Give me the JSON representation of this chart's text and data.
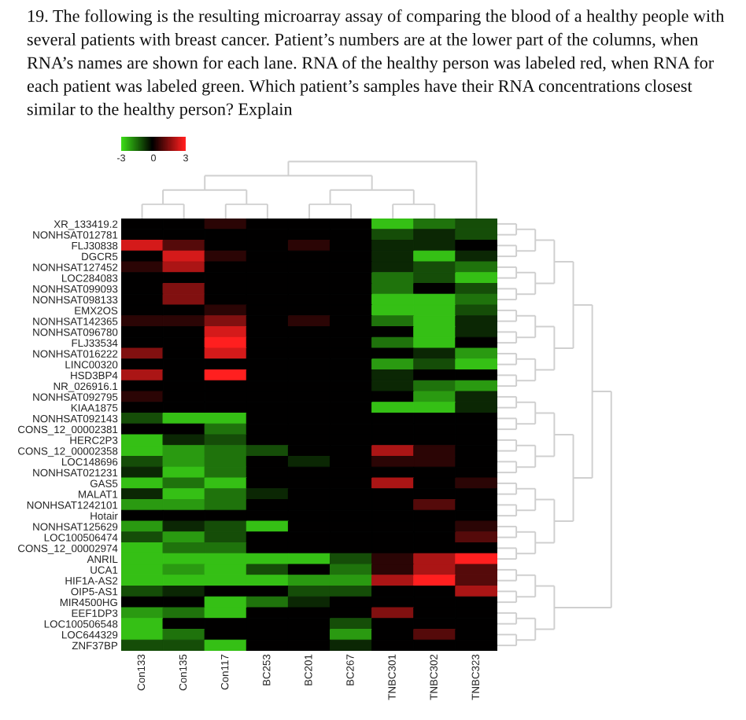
{
  "chart_data": {
    "type": "heatmap",
    "title": "19. The following is the resulting microarray assay of comparing the blood of a healthy people with\nseveral patients with breast cancer. Patient’s numbers are at the lower part of the columns, when\nRNA’s names are shown for each lane. RNA of the healthy person was labeled red, when RNA for\neach patient was labeled green. Which patient’s samples have their RNA concentrations closest\nsimilar to the healthy person? Explain",
    "categories": [
      "Con133",
      "Con135",
      "Con117",
      "BC253",
      "BC201",
      "BC267",
      "TNBC301",
      "TNBC302",
      "TNBC323"
    ],
    "y_categories": [
      "XR_133419.2",
      "NONHSAT012781",
      "FLJ30838",
      "DGCR5",
      "NONHSAT127452",
      "LOC284083",
      "NONHSAT099093",
      "NONHSAT098133",
      "EMX2OS",
      "NONHSAT142365",
      "NONHSAT096780",
      "FLJ33534",
      "NONHSAT016222",
      "LINC00320",
      "HSD3BP4",
      "NR_026916.1",
      "NONHSAT092795",
      "KIAA1875",
      "NONHSAT092143",
      "CONS_12_00002381",
      "HERC2P3",
      "CONS_12_00002358",
      "LOC148696",
      "NONHSAT021231",
      "GAS5",
      "MALAT1",
      "NONHSAT1242101",
      "Hotair",
      "NONHSAT125629",
      "LOC100506474",
      "CONS_12_00002974",
      "ANRIL",
      "UCA1",
      "HIF1A-AS2",
      "OIP5-AS1",
      "MIR4500HG",
      "EEF1DP3",
      "LOC100506548",
      "LOC644329",
      "ZNF37BP"
    ],
    "cells": [
      [
        0,
        0,
        0.5,
        0,
        0,
        0,
        -2.5,
        -1.5,
        -1
      ],
      [
        0,
        0,
        0,
        0,
        0,
        0,
        -1,
        -0.5,
        -1
      ],
      [
        2.5,
        1,
        0,
        0,
        0.5,
        0,
        -0.5,
        -0.5,
        0
      ],
      [
        0,
        2.5,
        0.5,
        0,
        0,
        0,
        -0.5,
        -2.5,
        -0.5
      ],
      [
        0.5,
        2,
        0,
        0,
        0,
        0,
        -0.5,
        -1,
        -1.5
      ],
      [
        0,
        0,
        0,
        0,
        0,
        0,
        -1.5,
        -1,
        -2.5
      ],
      [
        0,
        1.5,
        0,
        0,
        0,
        0,
        -1.5,
        0,
        -1
      ],
      [
        0,
        1.5,
        0,
        0,
        0,
        0,
        -2.5,
        -2.5,
        -1.5
      ],
      [
        0,
        0,
        0.5,
        0,
        0,
        0,
        -2.5,
        -2.5,
        -1
      ],
      [
        0.5,
        0.5,
        1.5,
        0,
        0.5,
        0,
        -1.5,
        -2.5,
        -0.5
      ],
      [
        0,
        0,
        2.5,
        0,
        0,
        0,
        0,
        -2.5,
        -0.5
      ],
      [
        0,
        0,
        3,
        0,
        0,
        0,
        -1.5,
        -2.5,
        0
      ],
      [
        1.5,
        0,
        2.5,
        0,
        0,
        0,
        0,
        -0.5,
        -2
      ],
      [
        0,
        0,
        0,
        0,
        0,
        0,
        -2,
        -1,
        -2.5
      ],
      [
        2,
        0,
        3,
        0,
        0,
        0,
        -0.5,
        0,
        0
      ],
      [
        0,
        0,
        0,
        0,
        0,
        0,
        -0.5,
        -1.5,
        -2
      ],
      [
        0.5,
        0,
        0,
        0,
        0,
        0,
        0,
        -2,
        -0.5
      ],
      [
        0,
        0,
        0,
        0,
        0,
        0,
        -2.5,
        -2.5,
        -0.5
      ],
      [
        -1,
        -2.5,
        -2.5,
        0,
        0,
        0,
        0,
        0,
        0
      ],
      [
        0,
        0,
        -1.5,
        0,
        0,
        0,
        0,
        0,
        0
      ],
      [
        -2.5,
        -0.5,
        -1,
        0,
        0,
        0,
        0,
        0,
        0
      ],
      [
        -2.5,
        -2,
        -1.5,
        -1,
        0,
        0,
        2,
        0.5,
        0
      ],
      [
        -1,
        -2,
        -1.5,
        0,
        -0.5,
        0,
        0.5,
        0.5,
        0
      ],
      [
        -0.5,
        -2.5,
        -1.5,
        0,
        0,
        0,
        0,
        0,
        0
      ],
      [
        -2.5,
        -1.5,
        -2.5,
        0,
        0,
        0,
        2,
        0,
        0.5
      ],
      [
        -0.5,
        -2.5,
        -1.5,
        -0.5,
        0,
        0,
        0,
        0,
        0
      ],
      [
        -2,
        -2,
        -1.5,
        0,
        0,
        0,
        0,
        1,
        0
      ],
      [
        0,
        0,
        0,
        0,
        0,
        0,
        0,
        0,
        0
      ],
      [
        -2,
        -0.5,
        -1,
        -2.5,
        0,
        0,
        0,
        0,
        0.5
      ],
      [
        -1,
        -2,
        -1,
        0,
        0,
        0,
        0,
        0,
        1
      ],
      [
        -2.5,
        -1.5,
        -1.5,
        0,
        0,
        0,
        0,
        0,
        0
      ],
      [
        -2.5,
        -2.5,
        -2.5,
        -2.5,
        -2.5,
        -1,
        0.5,
        2,
        3
      ],
      [
        -2.5,
        -2,
        -2.5,
        -1,
        0,
        -1.5,
        0.5,
        2,
        1
      ],
      [
        -2.5,
        -2.5,
        -2.5,
        -2.5,
        -2,
        -2,
        2,
        3,
        1
      ],
      [
        -1,
        -0.5,
        0,
        0,
        -1,
        -1,
        0,
        0,
        2
      ],
      [
        0,
        0,
        -2.5,
        -1.5,
        -0.5,
        0,
        0,
        0,
        0
      ],
      [
        -2,
        -1.5,
        -2.5,
        0,
        0,
        0,
        1.5,
        0,
        0
      ],
      [
        -2.5,
        0,
        0,
        0,
        0,
        -1,
        0,
        0,
        0
      ],
      [
        -2.5,
        -1.5,
        0,
        0,
        0,
        -2,
        0,
        1,
        0
      ],
      [
        -1,
        -1,
        -2.5,
        0,
        0,
        -0.5,
        0,
        0,
        0
      ]
    ],
    "clim": [
      -3,
      3
    ],
    "cticks": [
      -3,
      0,
      3
    ]
  }
}
